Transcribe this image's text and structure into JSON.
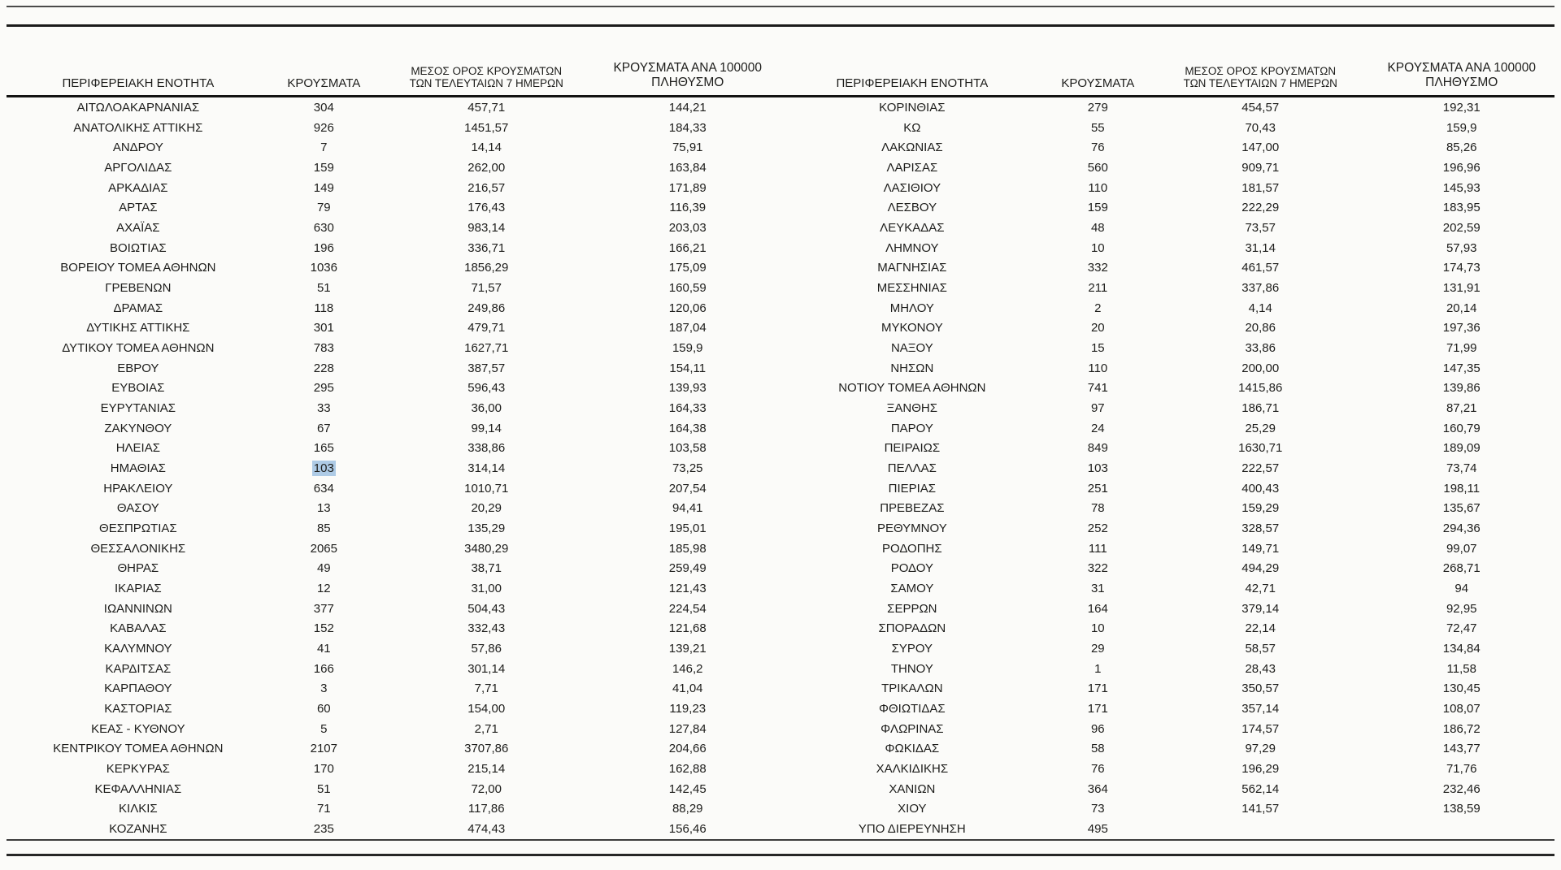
{
  "page": {
    "background": "#fbfbf9",
    "selection_color": "#aecbe6"
  },
  "table": {
    "columns": [
      "ΠΕΡΙΦΕΡΕΙΑΚΗ ΕΝΟΤΗΤΑ",
      "ΚΡΟΥΣΜΑΤΑ",
      "ΜΕΣΟΣ ΟΡΟΣ ΚΡΟΥΣΜΑΤΩΝ\nΤΩΝ ΤΕΛΕΥΤΑΙΩΝ 7 ΗΜΕΡΩΝ",
      "ΚΡΟΥΣΜΑΤΑ ΑΝΑ 100000\nΠΛΗΘΥΣΜΟ"
    ],
    "left_rows": [
      [
        "ΑΙΤΩΛΟΑΚΑΡΝΑΝΙΑΣ",
        "304",
        "457,71",
        "144,21"
      ],
      [
        "ΑΝΑΤΟΛΙΚΗΣ ΑΤΤΙΚΗΣ",
        "926",
        "1451,57",
        "184,33"
      ],
      [
        "ΑΝΔΡΟΥ",
        "7",
        "14,14",
        "75,91"
      ],
      [
        "ΑΡΓΟΛΙΔΑΣ",
        "159",
        "262,00",
        "163,84"
      ],
      [
        "ΑΡΚΑΔΙΑΣ",
        "149",
        "216,57",
        "171,89"
      ],
      [
        "ΑΡΤΑΣ",
        "79",
        "176,43",
        "116,39"
      ],
      [
        "ΑΧΑΪΑΣ",
        "630",
        "983,14",
        "203,03"
      ],
      [
        "ΒΟΙΩΤΙΑΣ",
        "196",
        "336,71",
        "166,21"
      ],
      [
        "ΒΟΡΕΙΟΥ ΤΟΜΕΑ ΑΘΗΝΩΝ",
        "1036",
        "1856,29",
        "175,09"
      ],
      [
        "ΓΡΕΒΕΝΩΝ",
        "51",
        "71,57",
        "160,59"
      ],
      [
        "ΔΡΑΜΑΣ",
        "118",
        "249,86",
        "120,06"
      ],
      [
        "ΔΥΤΙΚΗΣ ΑΤΤΙΚΗΣ",
        "301",
        "479,71",
        "187,04"
      ],
      [
        "ΔΥΤΙΚΟΥ ΤΟΜΕΑ ΑΘΗΝΩΝ",
        "783",
        "1627,71",
        "159,9"
      ],
      [
        "ΕΒΡΟΥ",
        "228",
        "387,57",
        "154,11"
      ],
      [
        "ΕΥΒΟΙΑΣ",
        "295",
        "596,43",
        "139,93"
      ],
      [
        "ΕΥΡΥΤΑΝΙΑΣ",
        "33",
        "36,00",
        "164,33"
      ],
      [
        "ΖΑΚΥΝΘΟΥ",
        "67",
        "99,14",
        "164,38"
      ],
      [
        "ΗΛΕΙΑΣ",
        "165",
        "338,86",
        "103,58"
      ],
      [
        "ΗΜΑΘΙΑΣ",
        "103",
        "314,14",
        "73,25"
      ],
      [
        "ΗΡΑΚΛΕΙΟΥ",
        "634",
        "1010,71",
        "207,54"
      ],
      [
        "ΘΑΣΟΥ",
        "13",
        "20,29",
        "94,41"
      ],
      [
        "ΘΕΣΠΡΩΤΙΑΣ",
        "85",
        "135,29",
        "195,01"
      ],
      [
        "ΘΕΣΣΑΛΟΝΙΚΗΣ",
        "2065",
        "3480,29",
        "185,98"
      ],
      [
        "ΘΗΡΑΣ",
        "49",
        "38,71",
        "259,49"
      ],
      [
        "ΙΚΑΡΙΑΣ",
        "12",
        "31,00",
        "121,43"
      ],
      [
        "ΙΩΑΝΝΙΝΩΝ",
        "377",
        "504,43",
        "224,54"
      ],
      [
        "ΚΑΒΑΛΑΣ",
        "152",
        "332,43",
        "121,68"
      ],
      [
        "ΚΑΛΥΜΝΟΥ",
        "41",
        "57,86",
        "139,21"
      ],
      [
        "ΚΑΡΔΙΤΣΑΣ",
        "166",
        "301,14",
        "146,2"
      ],
      [
        "ΚΑΡΠΑΘΟΥ",
        "3",
        "7,71",
        "41,04"
      ],
      [
        "ΚΑΣΤΟΡΙΑΣ",
        "60",
        "154,00",
        "119,23"
      ],
      [
        "ΚΕΑΣ - ΚΥΘΝΟΥ",
        "5",
        "2,71",
        "127,84"
      ],
      [
        "ΚΕΝΤΡΙΚΟΥ ΤΟΜΕΑ ΑΘΗΝΩΝ",
        "2107",
        "3707,86",
        "204,66"
      ],
      [
        "ΚΕΡΚΥΡΑΣ",
        "170",
        "215,14",
        "162,88"
      ],
      [
        "ΚΕΦΑΛΛΗΝΙΑΣ",
        "51",
        "72,00",
        "142,45"
      ],
      [
        "ΚΙΛΚΙΣ",
        "71",
        "117,86",
        "88,29"
      ],
      [
        "ΚΟΖΑΝΗΣ",
        "235",
        "474,43",
        "156,46"
      ]
    ],
    "right_rows": [
      [
        "ΚΟΡΙΝΘΙΑΣ",
        "279",
        "454,57",
        "192,31"
      ],
      [
        "ΚΩ",
        "55",
        "70,43",
        "159,9"
      ],
      [
        "ΛΑΚΩΝΙΑΣ",
        "76",
        "147,00",
        "85,26"
      ],
      [
        "ΛΑΡΙΣΑΣ",
        "560",
        "909,71",
        "196,96"
      ],
      [
        "ΛΑΣΙΘΙΟΥ",
        "110",
        "181,57",
        "145,93"
      ],
      [
        "ΛΕΣΒΟΥ",
        "159",
        "222,29",
        "183,95"
      ],
      [
        "ΛΕΥΚΑΔΑΣ",
        "48",
        "73,57",
        "202,59"
      ],
      [
        "ΛΗΜΝΟΥ",
        "10",
        "31,14",
        "57,93"
      ],
      [
        "ΜΑΓΝΗΣΙΑΣ",
        "332",
        "461,57",
        "174,73"
      ],
      [
        "ΜΕΣΣΗΝΙΑΣ",
        "211",
        "337,86",
        "131,91"
      ],
      [
        "ΜΗΛΟΥ",
        "2",
        "4,14",
        "20,14"
      ],
      [
        "ΜΥΚΟΝΟΥ",
        "20",
        "20,86",
        "197,36"
      ],
      [
        "ΝΑΞΟΥ",
        "15",
        "33,86",
        "71,99"
      ],
      [
        "ΝΗΣΩΝ",
        "110",
        "200,00",
        "147,35"
      ],
      [
        "ΝΟΤΙΟΥ ΤΟΜΕΑ ΑΘΗΝΩΝ",
        "741",
        "1415,86",
        "139,86"
      ],
      [
        "ΞΑΝΘΗΣ",
        "97",
        "186,71",
        "87,21"
      ],
      [
        "ΠΑΡΟΥ",
        "24",
        "25,29",
        "160,79"
      ],
      [
        "ΠΕΙΡΑΙΩΣ",
        "849",
        "1630,71",
        "189,09"
      ],
      [
        "ΠΕΛΛΑΣ",
        "103",
        "222,57",
        "73,74"
      ],
      [
        "ΠΙΕΡΙΑΣ",
        "251",
        "400,43",
        "198,11"
      ],
      [
        "ΠΡΕΒΕΖΑΣ",
        "78",
        "159,29",
        "135,67"
      ],
      [
        "ΡΕΘΥΜΝΟΥ",
        "252",
        "328,57",
        "294,36"
      ],
      [
        "ΡΟΔΟΠΗΣ",
        "111",
        "149,71",
        "99,07"
      ],
      [
        "ΡΟΔΟΥ",
        "322",
        "494,29",
        "268,71"
      ],
      [
        "ΣΑΜΟΥ",
        "31",
        "42,71",
        "94"
      ],
      [
        "ΣΕΡΡΩΝ",
        "164",
        "379,14",
        "92,95"
      ],
      [
        "ΣΠΟΡΑΔΩΝ",
        "10",
        "22,14",
        "72,47"
      ],
      [
        "ΣΥΡΟΥ",
        "29",
        "58,57",
        "134,84"
      ],
      [
        "ΤΗΝΟΥ",
        "1",
        "28,43",
        "11,58"
      ],
      [
        "ΤΡΙΚΑΛΩΝ",
        "171",
        "350,57",
        "130,45"
      ],
      [
        "ΦΘΙΩΤΙΔΑΣ",
        "171",
        "357,14",
        "108,07"
      ],
      [
        "ΦΛΩΡΙΝΑΣ",
        "96",
        "174,57",
        "186,72"
      ],
      [
        "ΦΩΚΙΔΑΣ",
        "58",
        "97,29",
        "143,77"
      ],
      [
        "ΧΑΛΚΙΔΙΚΗΣ",
        "76",
        "196,29",
        "71,76"
      ],
      [
        "ΧΑΝΙΩΝ",
        "364",
        "562,14",
        "232,46"
      ],
      [
        "ΧΙΟΥ",
        "73",
        "141,57",
        "138,59"
      ],
      [
        "ΥΠΟ ΔΙΕΡΕΥΝΗΣΗ",
        "495",
        "",
        ""
      ]
    ],
    "selection": {
      "table": "left",
      "row_index": 18,
      "col_index": 1,
      "region": "ΗΜΑΘΙΑΣ",
      "value": "103"
    }
  }
}
